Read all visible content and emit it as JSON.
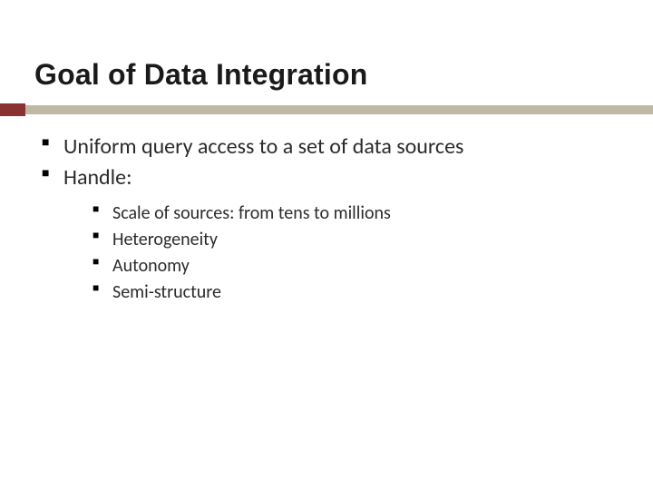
{
  "title": "Goal of Data Integration",
  "bullets": {
    "b0": "Uniform query access to a set of data sources",
    "b1": "Handle:",
    "sub": {
      "s0": "Scale of sources: from tens to millions",
      "s1": "Heterogeneity",
      "s2": "Autonomy",
      "s3": "Semi-structure"
    }
  },
  "style": {
    "background": "#ffffff",
    "title_color": "#1a1a1a",
    "title_fontsize": 32,
    "title_font": "Arial",
    "body_color": "#2b2b2b",
    "body_font": "Calibri",
    "level1_fontsize": 24,
    "level2_fontsize": 20,
    "rule": {
      "main_color": "#bfb8a5",
      "main_height": 10,
      "accent_color": "#8a3232",
      "accent_width": 28,
      "accent_height": 14
    },
    "bullet_glyph": "■",
    "bullet_color": "#000000"
  }
}
